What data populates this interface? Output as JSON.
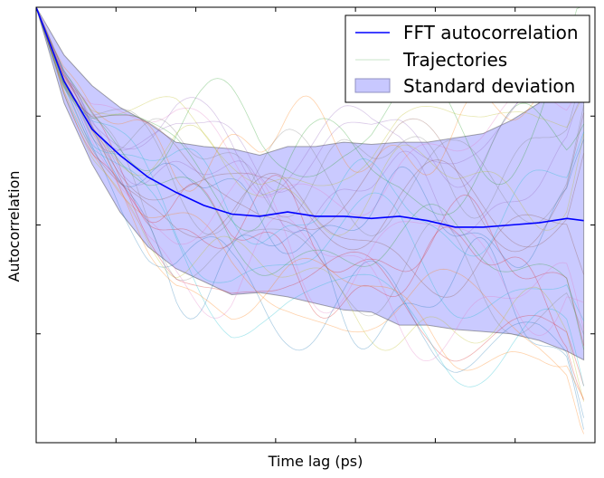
{
  "chart_data": {
    "type": "line",
    "xlabel": "Time lag (ps)",
    "ylabel": "Autocorrelation",
    "xlim": [
      0,
      1
    ],
    "ylim": [
      0,
      1
    ],
    "grid": false,
    "legend_position": "top-right",
    "legend": {
      "mean_label": "FFT autocorrelation",
      "traj_label": "Trajectories",
      "band_label": "Standard deviation"
    },
    "colors": {
      "mean": "#0000ff",
      "band_fill": "#8080ff",
      "band_edge": "#404040",
      "trajectories": [
        "#1f77b4",
        "#2ca02c",
        "#d62728",
        "#e377c2",
        "#9467bd",
        "#17becf",
        "#bcbd22",
        "#ff7f0e",
        "#8c564b",
        "#7f7f7f"
      ]
    },
    "x": [
      0,
      0.05,
      0.1,
      0.15,
      0.2,
      0.25,
      0.3,
      0.35,
      0.4,
      0.45,
      0.5,
      0.55,
      0.6,
      0.65,
      0.7,
      0.75,
      0.8,
      0.85,
      0.9,
      0.95,
      0.98
    ],
    "mean": [
      1.0,
      0.83,
      0.72,
      0.66,
      0.61,
      0.575,
      0.545,
      0.525,
      0.52,
      0.53,
      0.52,
      0.52,
      0.515,
      0.52,
      0.51,
      0.495,
      0.495,
      0.5,
      0.505,
      0.515,
      0.51
    ],
    "upper": [
      1.0,
      0.89,
      0.82,
      0.77,
      0.735,
      0.69,
      0.68,
      0.675,
      0.66,
      0.68,
      0.68,
      0.69,
      0.685,
      0.69,
      0.69,
      0.7,
      0.71,
      0.74,
      0.78,
      0.85,
      0.82
    ],
    "lower": [
      1.0,
      0.78,
      0.64,
      0.53,
      0.45,
      0.4,
      0.37,
      0.34,
      0.345,
      0.335,
      0.32,
      0.305,
      0.3,
      0.27,
      0.27,
      0.26,
      0.255,
      0.25,
      0.235,
      0.21,
      0.19
    ],
    "trajectories_count": 30
  }
}
